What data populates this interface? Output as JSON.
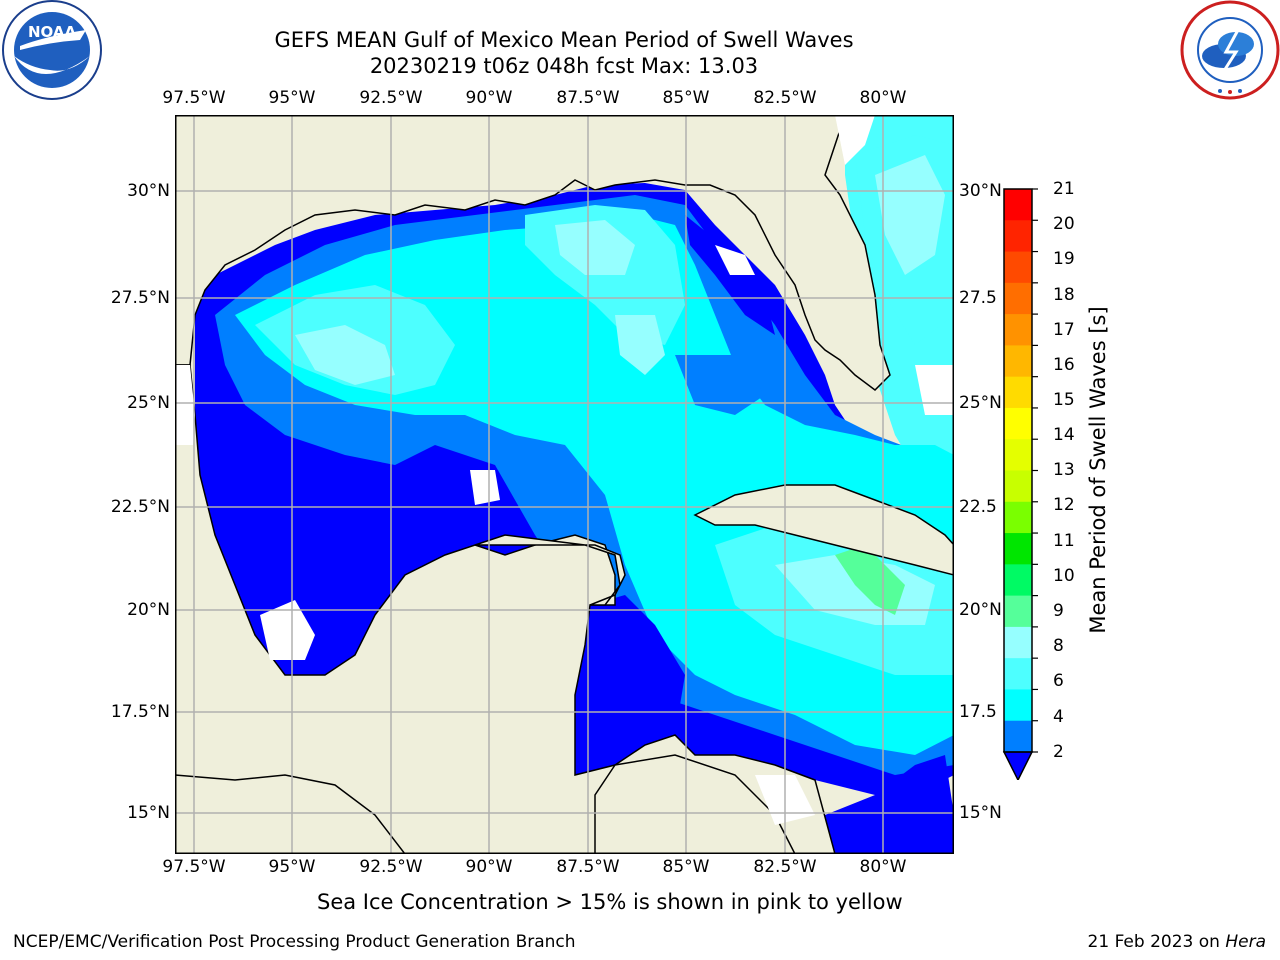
{
  "title_line1": "GEFS MEAN Gulf of Mexico Mean Period of Swell Waves",
  "title_line2": "20230219 t06z 048h fcst   Max: 13.03",
  "lon_labels": [
    "97.5°W",
    "95°W",
    "92.5°W",
    "90°W",
    "87.5°W",
    "85°W",
    "82.5°W",
    "80°W"
  ],
  "lat_labels_left": [
    "30°N",
    "27.5°N",
    "25°N",
    "22.5°N",
    "20°N",
    "17.5°N",
    "15°N"
  ],
  "lat_labels_right": [
    "30°N",
    "27.5",
    "25°N",
    "22.5",
    "20°N",
    "17.5",
    "15°N"
  ],
  "colorbar": {
    "label": "Mean Period of Swell Waves [s]",
    "ticks": [
      "21",
      "20",
      "19",
      "18",
      "17",
      "16",
      "15",
      "14",
      "13",
      "12",
      "11",
      "10",
      "9",
      "8",
      "6",
      "4",
      "2"
    ],
    "colors": [
      "#ff0000",
      "#ff2400",
      "#ff4a00",
      "#ff6e00",
      "#ff9200",
      "#ffb700",
      "#ffdb00",
      "#ffff00",
      "#e4ff00",
      "#c8ff00",
      "#7aff00",
      "#00e600",
      "#00fa64",
      "#55ff9a",
      "#96ffff",
      "#4dffff",
      "#00ffff",
      "#007fff",
      "#0000ff"
    ]
  },
  "map": {
    "land_color": "#efefdb",
    "ocean_colors": {
      "p2": "#0000ff",
      "p4": "#007fff",
      "p6": "#00ffff",
      "p8": "#4dffff",
      "p9": "#96ffff",
      "p10": "#55ff9a",
      "p11": "#00e600",
      "p12": "#7aff00",
      "p13": "#c8ff00"
    }
  },
  "logos": {
    "left": "NOAA",
    "right": "NATIONAL WEATHER SERVICE"
  },
  "footer_note": "Sea Ice Concentration > 15% is shown in pink to yellow",
  "credit": "NCEP/EMC/Verification Post Processing Product Generation Branch",
  "date_text": "21 Feb 2023 on ",
  "date_host": "Hera"
}
